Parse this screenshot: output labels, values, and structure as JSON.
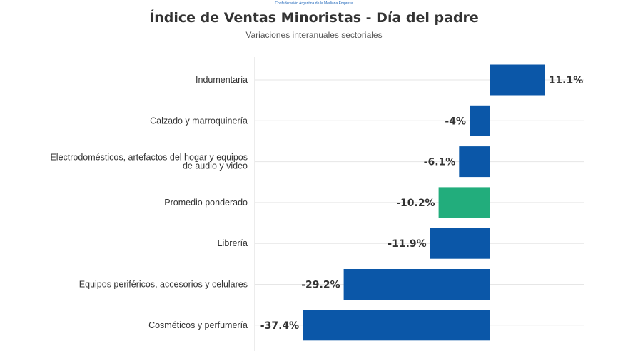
{
  "brand_text": "Confederación Argentina de la Mediana Empresa",
  "chart_data": {
    "type": "bar",
    "orientation": "horizontal",
    "title": "Índice de Ventas Minoristas - Día del padre",
    "subtitle": "Variaciones interanuales sectoriales",
    "categories": [
      "Indumentaria",
      "Calzado y marroquinería",
      "Electrodomésticos, artefactos del hogar y equipos de audio y video",
      "Promedio ponderado",
      "Librería",
      "Equipos periféricos, accesorios y celulares",
      "Cosméticos y perfumería"
    ],
    "category_label_lines": [
      [
        "Indumentaria"
      ],
      [
        "Calzado y marroquinería"
      ],
      [
        "Electrodomésticos, artefactos del hogar y equipos",
        "de audio y video"
      ],
      [
        "Promedio ponderado"
      ],
      [
        "Librería"
      ],
      [
        "Equipos periféricos, accesorios y celulares"
      ],
      [
        "Cosméticos y perfumería"
      ]
    ],
    "values": [
      11.1,
      -4,
      -6.1,
      -10.2,
      -11.9,
      -29.2,
      -37.4
    ],
    "value_labels": [
      "11.1%",
      "-4%",
      "-6.1%",
      "-10.2%",
      "-11.9%",
      "-29.2%",
      "-37.4%"
    ],
    "highlight_index": 3,
    "colors": {
      "bar": "#0b57a8",
      "highlight": "#22ad7c",
      "grid": "#e6e6e6",
      "axis": "#d9d9d9"
    },
    "xlim": [
      -45,
      15
    ],
    "grid": true,
    "legend": "none"
  }
}
